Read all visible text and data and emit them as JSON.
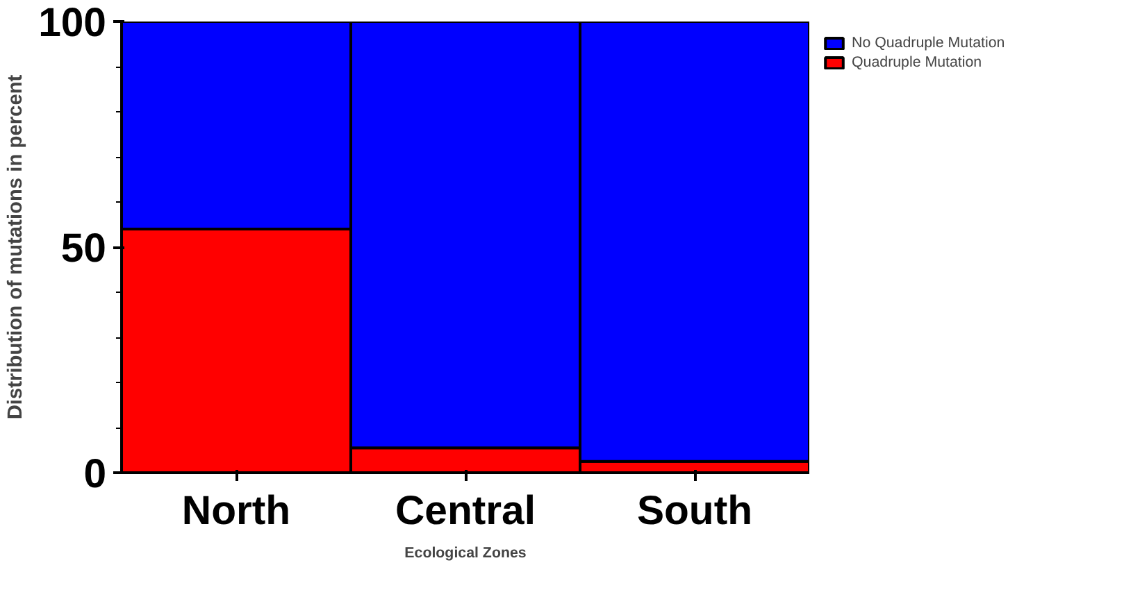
{
  "chart_data": {
    "type": "bar",
    "stacked": true,
    "xlabel": "Ecological Zones",
    "ylabel": "Distribution of mutations in percent",
    "categories": [
      "North",
      "Central",
      "South"
    ],
    "series": [
      {
        "name": "Quadruple Mutation",
        "color": "#ff0000",
        "values": [
          54,
          5.5,
          2.5
        ]
      },
      {
        "name": "No Quadruple Mutation",
        "color": "#0000ff",
        "values": [
          46,
          94.5,
          97.5
        ]
      }
    ],
    "ylim": [
      0,
      100
    ],
    "yticks": [
      0,
      50,
      100
    ],
    "legend": "right"
  }
}
